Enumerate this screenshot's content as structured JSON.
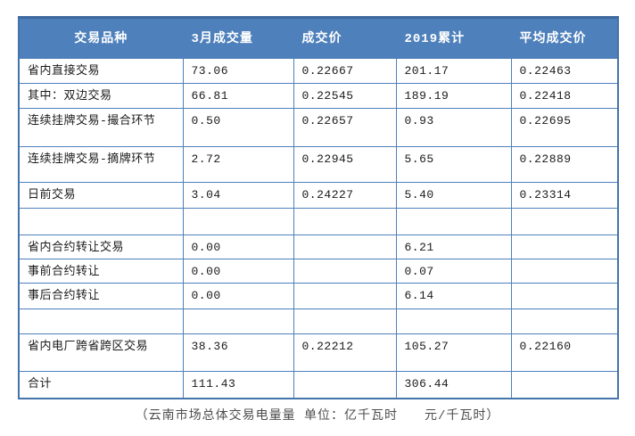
{
  "colors": {
    "header_bg": "#4e80bb",
    "table_border": "#4e80bb",
    "outer_border": "#4574aa",
    "header_text": "#ffffff",
    "body_text": "#1a1a1a",
    "caption_text": "#4d4d4d"
  },
  "table": {
    "headers": [
      "交易品种",
      "3月成交量",
      "成交价",
      "2019累计",
      "平均成交价"
    ],
    "rows": [
      {
        "cells": [
          "省内直接交易",
          "73.06",
          "0.22667",
          "201.17",
          "0.22463"
        ]
      },
      {
        "cells": [
          "其中：双边交易",
          "66.81",
          "0.22545",
          "189.19",
          "0.22418"
        ]
      },
      {
        "cells": [
          "连续挂牌交易-撮合环节",
          "0.50",
          "0.22657",
          "0.93",
          "0.22695"
        ]
      },
      {
        "cells": [
          "连续挂牌交易-摘牌环节",
          "2.72",
          "0.22945",
          "5.65",
          "0.22889"
        ]
      },
      {
        "cells": [
          "日前交易",
          "3.04",
          "0.24227",
          "5.40",
          "0.23314"
        ]
      },
      {
        "cells": [
          "",
          "",
          "",
          "",
          ""
        ]
      },
      {
        "cells": [
          "省内合约转让交易",
          "0.00",
          "",
          "6.21",
          ""
        ]
      },
      {
        "cells": [
          "事前合约转让",
          "0.00",
          "",
          "0.07",
          ""
        ]
      },
      {
        "cells": [
          "事后合约转让",
          "0.00",
          "",
          "6.14",
          ""
        ]
      },
      {
        "cells": [
          "",
          "",
          "",
          "",
          ""
        ]
      },
      {
        "cells": [
          "省内电厂跨省跨区交易",
          "38.36",
          "0.22212",
          "105.27",
          "0.22160"
        ]
      },
      {
        "cells": [
          "合计",
          "111.43",
          "",
          "306.44",
          ""
        ]
      }
    ]
  },
  "caption": "（云南市场总体交易电量量 单位：亿千瓦时　　元/千瓦时）"
}
